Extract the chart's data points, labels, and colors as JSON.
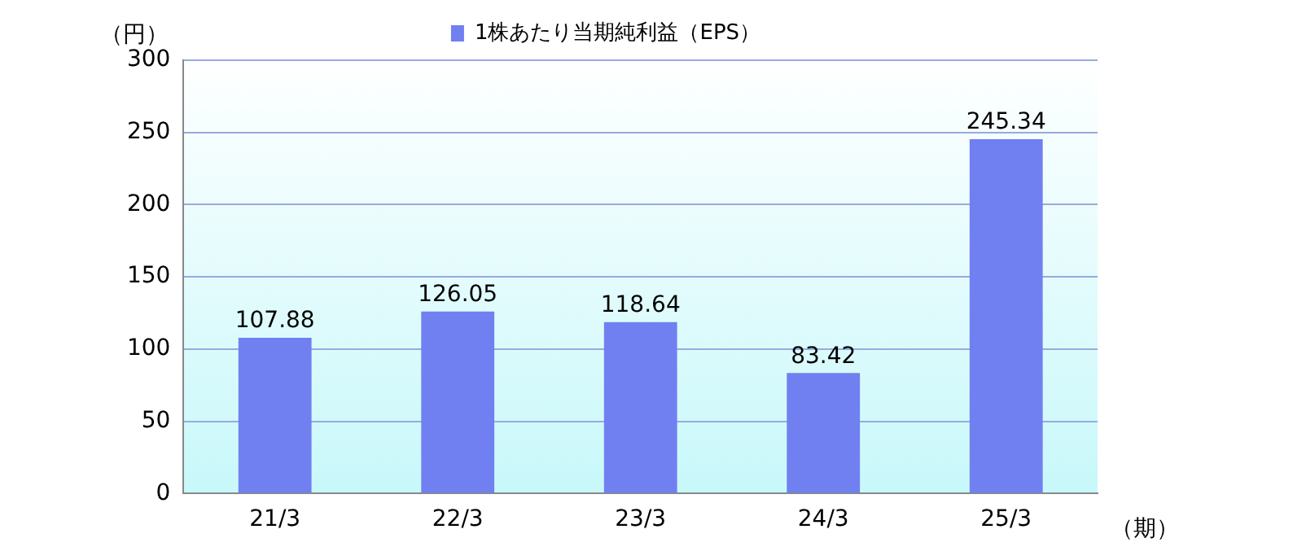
{
  "chart_data": {
    "type": "bar",
    "ylabel": "（円）",
    "xlabel": "（期）",
    "categories": [
      "21/3",
      "22/3",
      "23/3",
      "24/3",
      "25/3"
    ],
    "series": [
      {
        "name": "1株あたり当期純利益（EPS）",
        "color": "#7080f0",
        "values": [
          107.88,
          126.05,
          118.64,
          83.42,
          245.34
        ]
      }
    ],
    "ylim": [
      0,
      300
    ],
    "yticks": [
      0,
      50,
      100,
      150,
      200,
      250,
      300
    ],
    "grid": "y",
    "legend": "top",
    "data_labels": true
  }
}
